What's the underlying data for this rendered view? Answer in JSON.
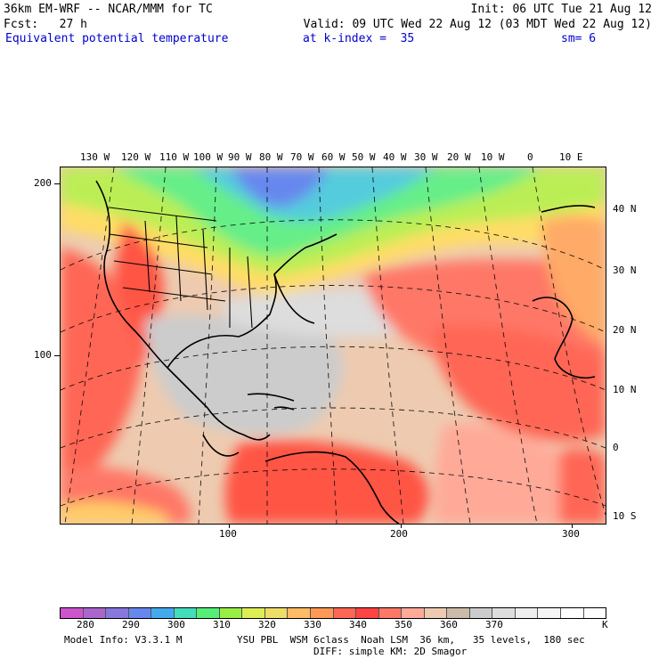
{
  "header": {
    "model": "36km EM-WRF -- NCAR/MMM for TC",
    "init": "Init: 06 UTC Tue 21 Aug 12",
    "fcst": "Fcst:   27 h",
    "valid": "Valid: 09 UTC Wed 22 Aug 12 (03 MDT Wed 22 Aug 12)",
    "field": "Equivalent potential temperature",
    "level": "at k-index =  35",
    "smoothing": "sm= 6"
  },
  "longitude_labels": [
    "130 W",
    "120 W",
    "110 W",
    "100 W",
    "90 W",
    "80 W",
    "70 W",
    "60 W",
    "50 W",
    "40 W",
    "30 W",
    "20 W",
    "10 W",
    "0",
    "10 E"
  ],
  "latitude_labels": [
    "40 N",
    "30 N",
    "20 N",
    "10 N",
    "0",
    "10 S"
  ],
  "grid_x_labels": [
    "100",
    "200",
    "300"
  ],
  "grid_y_labels": [
    "200",
    "100"
  ],
  "colorbar": {
    "labels": [
      "280",
      "290",
      "300",
      "310",
      "320",
      "330",
      "340",
      "350",
      "360",
      "370"
    ],
    "unit": "K",
    "colors": [
      "#cc55cc",
      "#aa66cc",
      "#8877dd",
      "#6688ee",
      "#44aaee",
      "#44ddbb",
      "#55ee77",
      "#99ee44",
      "#ddee55",
      "#eedd66",
      "#ffbb66",
      "#ff9955",
      "#ff6655",
      "#ff4444",
      "#ff7766",
      "#ffaa99",
      "#eecbb0",
      "#ccbbaa",
      "#cccccc",
      "#dddddd",
      "#eeeeee",
      "#f5f5f5",
      "#ffffff",
      "#ffffff"
    ]
  },
  "footer": {
    "model_info": "Model Info: V3.3.1 M",
    "physics": "YSU PBL  WSM 6class  Noah LSM  36 km,   35 levels,  180 sec",
    "diffusion": "DIFF: simple KM: 2D Smagor"
  }
}
